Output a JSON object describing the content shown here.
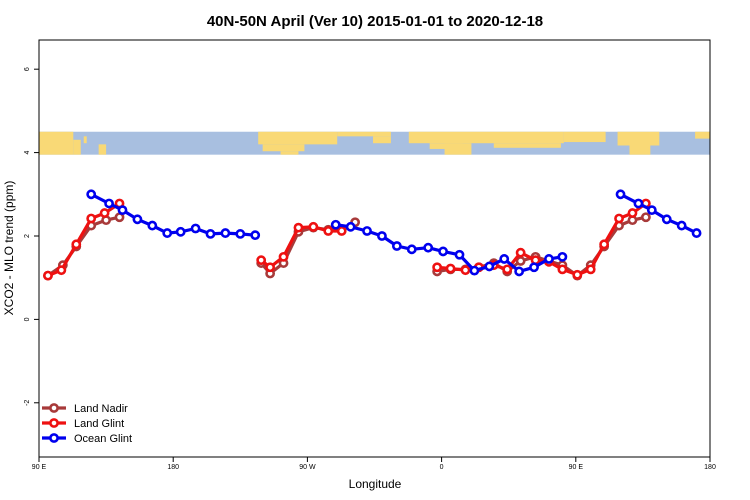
{
  "chart_data": {
    "type": "line",
    "title": "40N-50N April (Ver 10)   2015-01-01 to 2020-12-18",
    "xlabel": "Longitude",
    "ylabel": "XCO2 - MLO trend (ppm)",
    "xlim": [
      90,
      540
    ],
    "ylim": [
      -3.3,
      6.7
    ],
    "x_ticks": [
      {
        "value": 90,
        "label": "90 E"
      },
      {
        "value": 180,
        "label": "180"
      },
      {
        "value": 270,
        "label": "90 W"
      },
      {
        "value": 360,
        "label": "0"
      },
      {
        "value": 450,
        "label": "90 E"
      },
      {
        "value": 540,
        "label": "180"
      }
    ],
    "y_ticks": [
      {
        "value": -2,
        "label": "-2"
      },
      {
        "value": 0,
        "label": "0"
      },
      {
        "value": 2,
        "label": "2"
      },
      {
        "value": 4,
        "label": "4"
      },
      {
        "value": 6,
        "label": "6"
      }
    ],
    "map_strip": {
      "y_range": [
        3.95,
        4.5
      ],
      "land_color": "#f9d976",
      "ocean_color": "#a8bfe0"
    },
    "legend_position": "bottom-left",
    "series": [
      {
        "name": "Land Nadir",
        "color": "#a83a3a",
        "segments": [
          [
            [
              96,
              1.05
            ],
            [
              106,
              1.3
            ],
            [
              115,
              1.75
            ],
            [
              125,
              2.25
            ],
            [
              135,
              2.38
            ],
            [
              144,
              2.45
            ]
          ],
          [
            [
              239,
              1.35
            ],
            [
              245,
              1.1
            ],
            [
              254,
              1.35
            ],
            [
              264,
              2.1
            ],
            [
              274,
              2.2
            ],
            [
              284,
              2.15
            ],
            [
              293,
              2.15
            ],
            [
              302,
              2.33
            ]
          ],
          [
            [
              357,
              1.15
            ],
            [
              366,
              1.2
            ],
            [
              376,
              1.2
            ],
            [
              385,
              1.25
            ],
            [
              395,
              1.35
            ],
            [
              404,
              1.15
            ],
            [
              413,
              1.4
            ],
            [
              423,
              1.5
            ],
            [
              432,
              1.4
            ],
            [
              441,
              1.3
            ],
            [
              451,
              1.05
            ],
            [
              460,
              1.3
            ],
            [
              469,
              1.75
            ],
            [
              479,
              2.25
            ],
            [
              488,
              2.38
            ],
            [
              497,
              2.45
            ]
          ]
        ]
      },
      {
        "name": "Land Glint",
        "color": "#ee1111",
        "segments": [
          [
            [
              96,
              1.05
            ],
            [
              105,
              1.18
            ],
            [
              115,
              1.8
            ],
            [
              125,
              2.42
            ],
            [
              134,
              2.55
            ],
            [
              144,
              2.78
            ]
          ],
          [
            [
              239,
              1.42
            ],
            [
              245,
              1.25
            ],
            [
              254,
              1.5
            ],
            [
              264,
              2.2
            ],
            [
              274,
              2.22
            ],
            [
              284,
              2.12
            ],
            [
              293,
              2.12
            ]
          ],
          [
            [
              357,
              1.25
            ],
            [
              366,
              1.22
            ],
            [
              376,
              1.18
            ],
            [
              385,
              1.25
            ],
            [
              395,
              1.3
            ],
            [
              404,
              1.2
            ],
            [
              413,
              1.6
            ],
            [
              423,
              1.42
            ],
            [
              432,
              1.38
            ],
            [
              441,
              1.2
            ],
            [
              451,
              1.07
            ],
            [
              460,
              1.2
            ],
            [
              469,
              1.8
            ],
            [
              479,
              2.42
            ],
            [
              488,
              2.55
            ],
            [
              497,
              2.78
            ]
          ]
        ]
      },
      {
        "name": "Ocean Glint",
        "color": "#0000ee",
        "segments": [
          [
            [
              125,
              3.0
            ],
            [
              137,
              2.78
            ],
            [
              146,
              2.62
            ],
            [
              156,
              2.4
            ],
            [
              166,
              2.25
            ],
            [
              176,
              2.07
            ],
            [
              185,
              2.1
            ],
            [
              195,
              2.18
            ],
            [
              205,
              2.05
            ],
            [
              215,
              2.07
            ],
            [
              225,
              2.05
            ],
            [
              235,
              2.02
            ]
          ],
          [
            [
              289,
              2.27
            ],
            [
              299,
              2.22
            ],
            [
              310,
              2.12
            ],
            [
              320,
              2.0
            ],
            [
              330,
              1.76
            ],
            [
              340,
              1.68
            ],
            [
              351,
              1.72
            ],
            [
              361,
              1.63
            ],
            [
              372,
              1.55
            ],
            [
              382,
              1.17
            ],
            [
              392,
              1.27
            ],
            [
              402,
              1.45
            ],
            [
              412,
              1.15
            ],
            [
              422,
              1.25
            ],
            [
              432,
              1.45
            ],
            [
              441,
              1.5
            ]
          ],
          [
            [
              480,
              3.0
            ],
            [
              492,
              2.78
            ],
            [
              501,
              2.62
            ],
            [
              511,
              2.4
            ],
            [
              521,
              2.25
            ],
            [
              531,
              2.07
            ]
          ]
        ]
      }
    ]
  }
}
